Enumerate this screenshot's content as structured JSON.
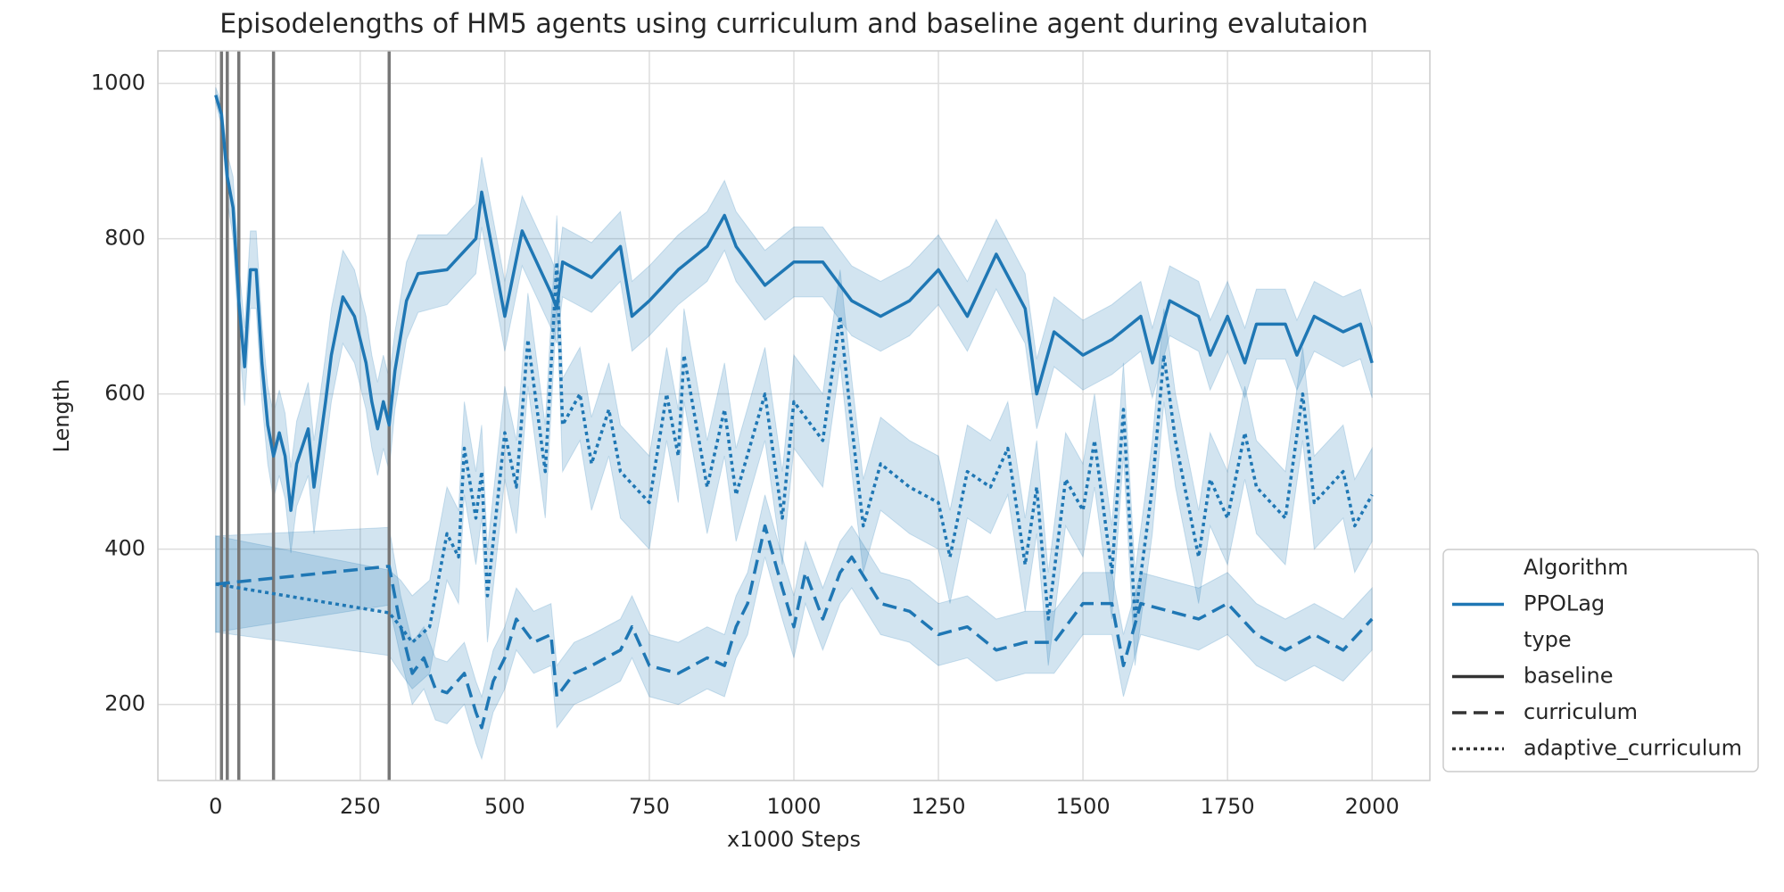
{
  "chart_data": {
    "type": "line",
    "title": "Episodelengths of HM5 agents using curriculum and baseline agent during evalutaion",
    "x_label": "x1000 Steps",
    "y_label": "Length",
    "xlim": [
      -100,
      2100
    ],
    "ylim": [
      102,
      1042
    ],
    "xticks": [
      0,
      250,
      500,
      750,
      1000,
      1250,
      1500,
      1750,
      2000
    ],
    "yticks": [
      200,
      400,
      600,
      800,
      1000
    ],
    "grid": true,
    "vlines": [
      10,
      20,
      40,
      100,
      300
    ],
    "vline_color": "#777777",
    "legend": {
      "position": "outside right",
      "hue_title": "Algorithm",
      "hue_labels": [
        "PPOLag"
      ],
      "style_title": "type"
    },
    "series": [
      {
        "name": "baseline",
        "color": "#1f77b4",
        "dash": "solid",
        "x": [
          0,
          10,
          20,
          30,
          40,
          50,
          60,
          70,
          80,
          90,
          100,
          110,
          120,
          130,
          140,
          160,
          170,
          190,
          200,
          220,
          240,
          260,
          270,
          280,
          290,
          300,
          310,
          330,
          350,
          400,
          450,
          460,
          500,
          530,
          580,
          590,
          600,
          650,
          700,
          720,
          750,
          800,
          850,
          880,
          900,
          950,
          1000,
          1050,
          1100,
          1150,
          1200,
          1250,
          1300,
          1350,
          1400,
          1420,
          1450,
          1500,
          1550,
          1600,
          1620,
          1650,
          1700,
          1720,
          1750,
          1780,
          1800,
          1850,
          1870,
          1900,
          1950,
          1980,
          2000
        ],
        "values": [
          985,
          960,
          880,
          840,
          720,
          635,
          760,
          760,
          640,
          560,
          520,
          550,
          520,
          450,
          510,
          555,
          480,
          590,
          650,
          725,
          700,
          640,
          590,
          555,
          590,
          560,
          630,
          720,
          755,
          760,
          800,
          860,
          700,
          810,
          730,
          710,
          770,
          750,
          790,
          700,
          720,
          760,
          790,
          830,
          790,
          740,
          770,
          770,
          720,
          700,
          720,
          760,
          700,
          780,
          710,
          600,
          680,
          650,
          670,
          700,
          640,
          720,
          700,
          650,
          700,
          640,
          690,
          690,
          650,
          700,
          680,
          690,
          640
        ],
        "ci": [
          10,
          15,
          30,
          40,
          50,
          50,
          50,
          50,
          50,
          50,
          55,
          55,
          55,
          55,
          55,
          60,
          60,
          60,
          60,
          60,
          60,
          60,
          60,
          60,
          60,
          60,
          50,
          50,
          50,
          45,
          45,
          45,
          45,
          45,
          45,
          45,
          45,
          45,
          45,
          45,
          45,
          45,
          45,
          45,
          45,
          45,
          45,
          45,
          45,
          45,
          45,
          45,
          45,
          45,
          45,
          45,
          45,
          45,
          45,
          45,
          45,
          45,
          45,
          45,
          45,
          45,
          45,
          45,
          45,
          45,
          45,
          45,
          45
        ]
      },
      {
        "name": "curriculum",
        "color": "#1f77b4",
        "dash": "dashed",
        "x": [
          0,
          300,
          320,
          340,
          360,
          380,
          400,
          430,
          450,
          460,
          480,
          500,
          520,
          550,
          580,
          590,
          620,
          650,
          700,
          720,
          750,
          800,
          850,
          880,
          900,
          920,
          950,
          980,
          1000,
          1020,
          1050,
          1080,
          1100,
          1150,
          1200,
          1250,
          1300,
          1350,
          1400,
          1450,
          1500,
          1550,
          1570,
          1600,
          1650,
          1700,
          1750,
          1800,
          1850,
          1900,
          1950,
          2000
        ],
        "values": [
          355,
          378,
          300,
          240,
          260,
          220,
          215,
          240,
          190,
          170,
          230,
          260,
          310,
          280,
          290,
          210,
          240,
          250,
          270,
          300,
          250,
          240,
          260,
          250,
          300,
          330,
          430,
          350,
          300,
          370,
          310,
          370,
          390,
          330,
          320,
          290,
          300,
          270,
          280,
          280,
          330,
          330,
          250,
          330,
          320,
          310,
          330,
          290,
          270,
          290,
          270,
          310
        ],
        "ci": [
          62,
          50,
          40,
          40,
          40,
          40,
          40,
          40,
          40,
          40,
          40,
          40,
          40,
          40,
          40,
          40,
          40,
          40,
          40,
          40,
          40,
          40,
          40,
          40,
          40,
          40,
          40,
          40,
          40,
          40,
          40,
          40,
          40,
          40,
          40,
          40,
          40,
          40,
          40,
          40,
          40,
          40,
          40,
          40,
          40,
          40,
          40,
          40,
          40,
          40,
          40,
          40
        ]
      },
      {
        "name": "adaptive_curriculum",
        "color": "#1f77b4",
        "dash": "dotted",
        "x": [
          0,
          300,
          320,
          340,
          370,
          400,
          420,
          430,
          450,
          460,
          470,
          500,
          520,
          540,
          570,
          590,
          600,
          630,
          650,
          680,
          700,
          750,
          780,
          800,
          810,
          850,
          880,
          900,
          950,
          980,
          1000,
          1050,
          1080,
          1100,
          1120,
          1150,
          1200,
          1250,
          1270,
          1300,
          1340,
          1370,
          1400,
          1420,
          1440,
          1470,
          1500,
          1520,
          1550,
          1570,
          1590,
          1620,
          1640,
          1660,
          1700,
          1720,
          1750,
          1780,
          1800,
          1850,
          1880,
          1900,
          1950,
          1970,
          2000
        ],
        "values": [
          355,
          318,
          300,
          280,
          300,
          420,
          390,
          530,
          440,
          500,
          340,
          550,
          480,
          670,
          500,
          770,
          560,
          600,
          510,
          580,
          500,
          460,
          600,
          520,
          650,
          480,
          580,
          470,
          600,
          440,
          590,
          540,
          700,
          560,
          430,
          510,
          480,
          460,
          390,
          500,
          480,
          530,
          380,
          480,
          310,
          490,
          450,
          540,
          370,
          580,
          310,
          480,
          650,
          540,
          390,
          490,
          440,
          550,
          480,
          440,
          600,
          460,
          500,
          430,
          470
        ],
        "ci": [
          62,
          55,
          60,
          60,
          60,
          60,
          60,
          60,
          60,
          60,
          60,
          60,
          60,
          60,
          60,
          60,
          60,
          60,
          60,
          60,
          60,
          60,
          60,
          60,
          60,
          60,
          60,
          60,
          60,
          60,
          60,
          60,
          60,
          60,
          60,
          60,
          60,
          60,
          60,
          60,
          60,
          60,
          60,
          60,
          60,
          60,
          60,
          60,
          60,
          60,
          60,
          60,
          60,
          60,
          60,
          60,
          60,
          60,
          60,
          60,
          60,
          60,
          60,
          60,
          60
        ]
      }
    ]
  }
}
